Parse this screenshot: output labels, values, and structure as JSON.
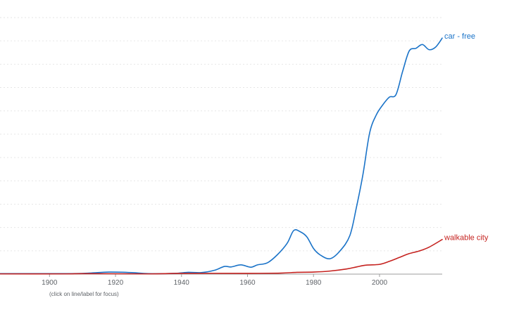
{
  "chart_data": {
    "type": "line",
    "title": "",
    "xlabel": "",
    "ylabel": "",
    "xlim": [
      1885,
      2019
    ],
    "ylim": [
      0,
      100
    ],
    "x_ticks": [
      1900,
      1920,
      1940,
      1960,
      1980,
      2000
    ],
    "y_gridlines": 11,
    "grid": true,
    "note": "(click on line/label for focus)",
    "series": [
      {
        "name": "car - free",
        "color": "#1a73c8",
        "points": [
          [
            1885,
            0.2
          ],
          [
            1905,
            0.2
          ],
          [
            1912,
            0.4
          ],
          [
            1918,
            0.8
          ],
          [
            1925,
            0.6
          ],
          [
            1930,
            0.2
          ],
          [
            1938,
            0.3
          ],
          [
            1942,
            0.7
          ],
          [
            1946,
            0.6
          ],
          [
            1950,
            1.5
          ],
          [
            1953,
            3.0
          ],
          [
            1955,
            2.8
          ],
          [
            1958,
            3.6
          ],
          [
            1961,
            2.7
          ],
          [
            1963,
            3.6
          ],
          [
            1966,
            4.4
          ],
          [
            1969,
            7.5
          ],
          [
            1972,
            12.0
          ],
          [
            1974,
            17.0
          ],
          [
            1976,
            16.5
          ],
          [
            1978,
            14.5
          ],
          [
            1980,
            10.0
          ],
          [
            1982,
            7.5
          ],
          [
            1985,
            6.0
          ],
          [
            1988,
            9.0
          ],
          [
            1991,
            15.0
          ],
          [
            1993,
            26.0
          ],
          [
            1995,
            39.0
          ],
          [
            1997,
            55.0
          ],
          [
            1999,
            62.0
          ],
          [
            2001,
            66.0
          ],
          [
            2003,
            69.0
          ],
          [
            2005,
            70.0
          ],
          [
            2007,
            79.0
          ],
          [
            2009,
            87.0
          ],
          [
            2011,
            88.0
          ],
          [
            2013,
            89.5
          ],
          [
            2015,
            87.5
          ],
          [
            2017,
            88.5
          ],
          [
            2019,
            92.0
          ]
        ]
      },
      {
        "name": "walkable city",
        "color": "#c5221f",
        "points": [
          [
            1885,
            0.1
          ],
          [
            1905,
            0.1
          ],
          [
            1910,
            0.2
          ],
          [
            1930,
            0.1
          ],
          [
            1940,
            0.3
          ],
          [
            1960,
            0.3
          ],
          [
            1970,
            0.4
          ],
          [
            1975,
            0.7
          ],
          [
            1980,
            0.8
          ],
          [
            1985,
            1.2
          ],
          [
            1990,
            2.0
          ],
          [
            1993,
            2.8
          ],
          [
            1996,
            3.5
          ],
          [
            2000,
            3.8
          ],
          [
            2003,
            5.0
          ],
          [
            2006,
            6.5
          ],
          [
            2009,
            8.0
          ],
          [
            2012,
            9.0
          ],
          [
            2015,
            10.5
          ],
          [
            2019,
            13.5
          ]
        ]
      }
    ]
  }
}
